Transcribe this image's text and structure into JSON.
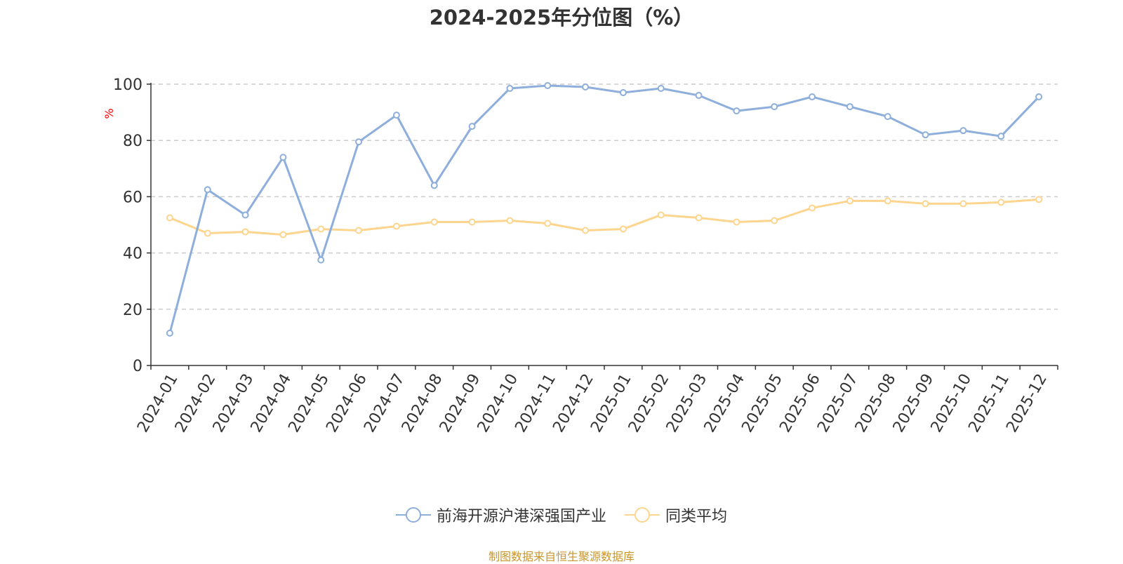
{
  "chart_data": {
    "type": "line",
    "title": "2024-2025年分位图（%）",
    "ylabel": "%",
    "xlabel": "",
    "ylim": [
      0,
      100
    ],
    "yticks": [
      0,
      20,
      40,
      60,
      80,
      100
    ],
    "grid": true,
    "legend_position": "bottom",
    "categories": [
      "2024-01",
      "2024-02",
      "2024-03",
      "2024-04",
      "2024-05",
      "2024-06",
      "2024-07",
      "2024-08",
      "2024-09",
      "2024-10",
      "2024-11",
      "2024-12",
      "2025-01",
      "2025-02",
      "2025-03",
      "2025-04",
      "2025-05",
      "2025-06",
      "2025-07",
      "2025-08",
      "2025-09",
      "2025-10",
      "2025-11",
      "2025-12"
    ],
    "series": [
      {
        "name": "前海开源沪港深强国产业",
        "color": "#8eaedb",
        "values": [
          11.5,
          62.5,
          53.5,
          74.0,
          37.5,
          79.5,
          89.0,
          64.0,
          85.0,
          98.5,
          99.5,
          99.0,
          97.0,
          98.5,
          96.0,
          90.5,
          92.0,
          95.5,
          92.0,
          88.5,
          82.0,
          83.5,
          81.5,
          95.5
        ]
      },
      {
        "name": "同类平均",
        "color": "#fdd58e",
        "values": [
          52.5,
          47.0,
          47.5,
          46.5,
          48.5,
          48.0,
          49.5,
          51.0,
          51.0,
          51.5,
          50.5,
          48.0,
          48.5,
          53.5,
          52.5,
          51.0,
          51.5,
          56.0,
          58.5,
          58.5,
          57.5,
          57.5,
          58.0,
          59.0
        ]
      }
    ]
  },
  "ylabel_color": "#ff0000",
  "source_text": "制图数据来自恒生聚源数据库",
  "source_color": "#c9962b"
}
